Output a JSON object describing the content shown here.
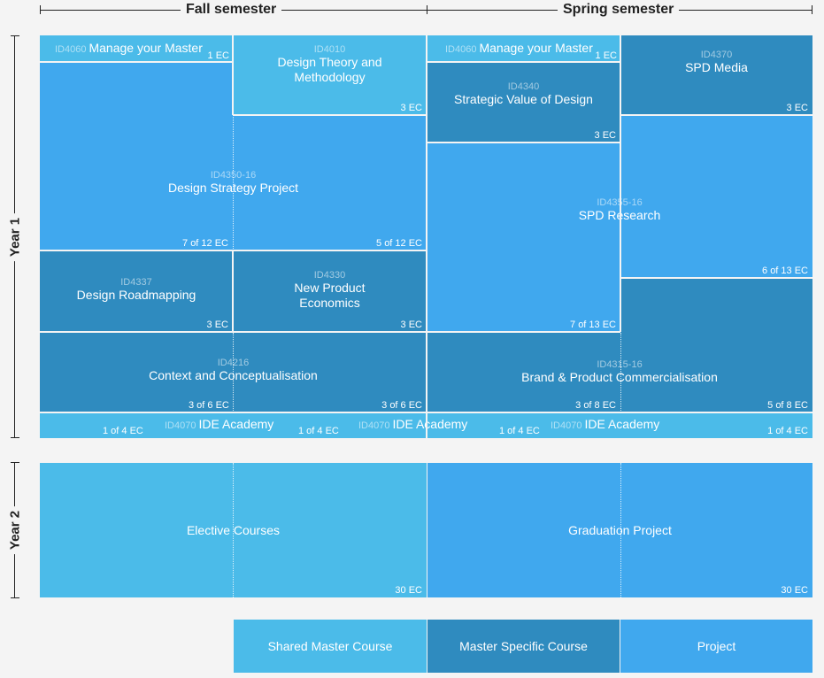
{
  "semesters": {
    "fall": "Fall semester",
    "spring": "Spring semester"
  },
  "years": {
    "year1": "Year 1",
    "year2": "Year 2"
  },
  "courses": {
    "manage_fall": {
      "code": "ID4060",
      "title": "Manage your Master",
      "ec": "1 EC"
    },
    "manage_spring": {
      "code": "ID4060",
      "title": "Manage your Master",
      "ec": "1 EC"
    },
    "design_theory": {
      "code": "ID4010",
      "title_line1": "Design Theory and",
      "title_line2": "Methodology",
      "ec": "3 EC"
    },
    "strategic_value": {
      "code": "ID4340",
      "title": "Strategic Value of Design",
      "ec": "3 EC"
    },
    "spd_media": {
      "code": "ID4370",
      "title": "SPD Media",
      "ec": "3 EC"
    },
    "design_strategy": {
      "code": "ID4350-16",
      "title": "Design Strategy Project",
      "ec_left": "7 of 12 EC",
      "ec_right": "5 of 12 EC"
    },
    "spd_research": {
      "code": "ID4355-16",
      "title": "SPD Research",
      "ec_left": "7 of 13 EC",
      "ec_right": "6 of 13 EC"
    },
    "roadmapping": {
      "code": "ID4337",
      "title": "Design Roadmapping",
      "ec": "3 EC"
    },
    "new_product": {
      "code": "ID4330",
      "title_line1": "New Product",
      "title_line2": "Economics",
      "ec": "3 EC"
    },
    "context": {
      "code": "ID4216",
      "title": "Context and Conceptualisation",
      "ec_left": "3 of 6 EC",
      "ec_right": "3 of 6 EC"
    },
    "brand": {
      "code": "ID4315-16",
      "title": "Brand & Product Commercialisation",
      "ec_left": "3 of 8 EC",
      "ec_right": "5 of 8 EC"
    },
    "ide_academy": {
      "code": "ID4070",
      "title": "IDE Academy",
      "ec": "1 of 4 EC"
    },
    "elective": {
      "title": "Elective Courses",
      "ec": "30 EC"
    },
    "graduation": {
      "title": "Graduation Project",
      "ec": "30 EC"
    }
  },
  "legend": {
    "shared": "Shared Master Course",
    "specific": "Master Specific Course",
    "project": "Project"
  },
  "colors": {
    "shared": "#4bbbe9",
    "specific": "#2f8bbf",
    "project": "#40a8ee",
    "background": "#f4f4f4"
  }
}
